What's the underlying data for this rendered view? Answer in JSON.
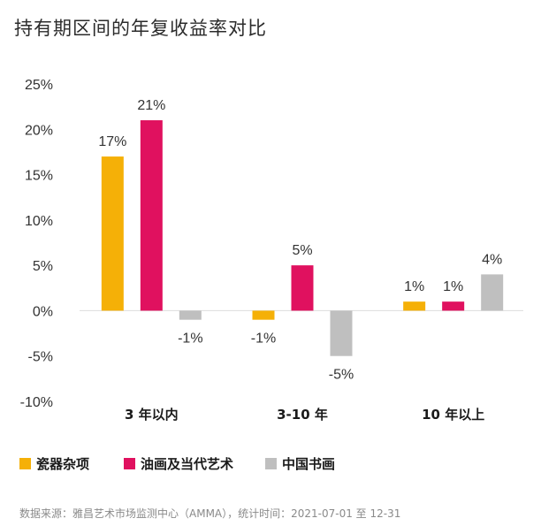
{
  "chart_data": {
    "type": "bar",
    "title": "持有期区间的年复收益率对比",
    "categories": [
      "3 年以内",
      "3-10 年",
      "10 年以上"
    ],
    "series": [
      {
        "name": "瓷器杂项",
        "color": "#F5B007",
        "values": [
          17,
          -1,
          1
        ],
        "labels": [
          "17%",
          "-1%",
          "1%"
        ]
      },
      {
        "name": "油画及当代艺术",
        "color": "#E0115F",
        "values": [
          21,
          5,
          1
        ],
        "labels": [
          "21%",
          "5%",
          "1%"
        ]
      },
      {
        "name": "中国书画",
        "color": "#BFBFBF",
        "values": [
          -1,
          -5,
          4
        ],
        "labels": [
          "-1%",
          "-5%",
          "4%"
        ]
      }
    ],
    "ylim": [
      -10,
      25
    ],
    "yticks": [
      25,
      20,
      15,
      10,
      5,
      0,
      -5,
      -10
    ],
    "ytick_labels": [
      "25%",
      "20%",
      "15%",
      "10%",
      "5%",
      "0%",
      "-5%",
      "-10%"
    ],
    "grid": false,
    "legend": "bottom-left",
    "source": "数据来源：雅昌艺术市场监测中心（AMMA），统计时间：2021-07-01 至 12-31"
  }
}
